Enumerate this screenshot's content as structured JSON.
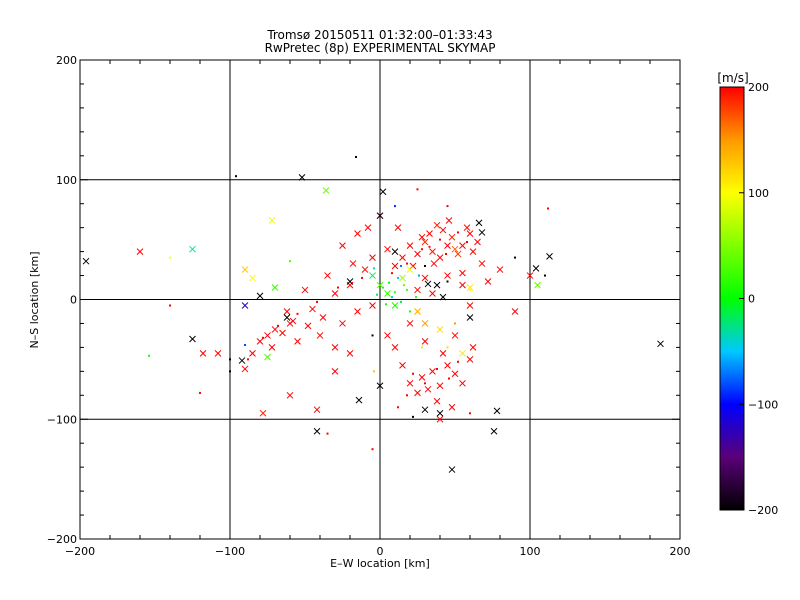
{
  "chart_data": {
    "type": "scatter",
    "title": "Tromsø 20150511 01:32:00–01:33:43",
    "subtitle": "RwPretec (8p) EXPERIMENTAL SKYMAP",
    "xlabel": "E–W location [km]",
    "ylabel": "N–S location [km]",
    "xlim": [
      -200,
      200
    ],
    "ylim": [
      -200,
      200
    ],
    "xticks": [
      -200,
      -100,
      0,
      100,
      200
    ],
    "yticks": [
      -200,
      -100,
      0,
      100,
      200
    ],
    "x_tick_labels": [
      "−200",
      "−100",
      "0",
      "100",
      "200"
    ],
    "y_tick_labels": [
      "−200",
      "−100",
      "0",
      "100",
      "200"
    ],
    "grid": true,
    "grid_lines": [
      -100,
      0,
      100
    ],
    "marker_types": [
      "x",
      "dot"
    ],
    "colorbar": {
      "label": "[m/s]",
      "range": [
        -200,
        200
      ],
      "ticks": [
        200,
        100,
        0,
        -100,
        -200
      ],
      "tick_labels": [
        "200",
        "100",
        "0",
        "−100",
        "−200"
      ],
      "colormap": "rainbow_black_to_red",
      "stops": [
        {
          "v": -200,
          "color": "#000000"
        },
        {
          "v": -150,
          "color": "#5a0078"
        },
        {
          "v": -100,
          "color": "#0000ff"
        },
        {
          "v": -50,
          "color": "#00c8ff"
        },
        {
          "v": 0,
          "color": "#00ff00"
        },
        {
          "v": 100,
          "color": "#ffff00"
        },
        {
          "v": 150,
          "color": "#ff9900"
        },
        {
          "v": 200,
          "color": "#ff0000"
        }
      ]
    },
    "points": [
      {
        "x": 42,
        "y": 58,
        "v": 200,
        "m": "x"
      },
      {
        "x": 35,
        "y": 40,
        "v": 195,
        "m": "x"
      },
      {
        "x": 48,
        "y": 52,
        "v": 190,
        "m": "x"
      },
      {
        "x": 55,
        "y": 45,
        "v": 200,
        "m": "x"
      },
      {
        "x": 30,
        "y": 48,
        "v": 185,
        "m": "x"
      },
      {
        "x": 60,
        "y": 55,
        "v": 200,
        "m": "x"
      },
      {
        "x": 25,
        "y": 38,
        "v": 200,
        "m": "x"
      },
      {
        "x": 38,
        "y": 62,
        "v": 190,
        "m": "x"
      },
      {
        "x": 45,
        "y": 45,
        "v": 200,
        "m": "x"
      },
      {
        "x": 52,
        "y": 38,
        "v": 180,
        "m": "x"
      },
      {
        "x": 28,
        "y": 52,
        "v": 200,
        "m": "x"
      },
      {
        "x": 65,
        "y": 48,
        "v": 200,
        "m": "x"
      },
      {
        "x": 40,
        "y": 35,
        "v": 200,
        "m": "x"
      },
      {
        "x": 58,
        "y": 60,
        "v": 195,
        "m": "x"
      },
      {
        "x": 33,
        "y": 55,
        "v": 200,
        "m": "x"
      },
      {
        "x": 20,
        "y": 45,
        "v": 200,
        "m": "x"
      },
      {
        "x": 46,
        "y": 66,
        "v": 200,
        "m": "x"
      },
      {
        "x": 50,
        "y": 42,
        "v": 170,
        "m": "x"
      },
      {
        "x": 62,
        "y": 40,
        "v": 200,
        "m": "x"
      },
      {
        "x": 15,
        "y": 35,
        "v": 200,
        "m": "x"
      },
      {
        "x": 36,
        "y": 30,
        "v": 200,
        "m": "x"
      },
      {
        "x": 22,
        "y": 28,
        "v": 200,
        "m": "x"
      },
      {
        "x": 10,
        "y": 28,
        "v": 200,
        "m": "x"
      },
      {
        "x": 5,
        "y": 42,
        "v": 200,
        "m": "x"
      },
      {
        "x": -5,
        "y": 35,
        "v": 200,
        "m": "x"
      },
      {
        "x": 12,
        "y": 60,
        "v": 200,
        "m": "x"
      },
      {
        "x": 30,
        "y": 18,
        "v": 200,
        "m": "x"
      },
      {
        "x": 45,
        "y": 20,
        "v": 200,
        "m": "x"
      },
      {
        "x": 55,
        "y": 22,
        "v": 200,
        "m": "x"
      },
      {
        "x": 68,
        "y": 30,
        "v": 200,
        "m": "x"
      },
      {
        "x": 72,
        "y": 15,
        "v": 200,
        "m": "x"
      },
      {
        "x": 80,
        "y": 25,
        "v": 200,
        "m": "x"
      },
      {
        "x": -10,
        "y": 25,
        "v": 200,
        "m": "x"
      },
      {
        "x": -20,
        "y": 12,
        "v": 200,
        "m": "x"
      },
      {
        "x": -30,
        "y": 5,
        "v": 200,
        "m": "x"
      },
      {
        "x": -18,
        "y": 30,
        "v": 200,
        "m": "x"
      },
      {
        "x": -35,
        "y": 20,
        "v": 200,
        "m": "x"
      },
      {
        "x": -50,
        "y": 8,
        "v": 200,
        "m": "x"
      },
      {
        "x": -60,
        "y": -20,
        "v": 200,
        "m": "x"
      },
      {
        "x": -70,
        "y": -25,
        "v": 200,
        "m": "x"
      },
      {
        "x": -75,
        "y": -30,
        "v": 200,
        "m": "x"
      },
      {
        "x": -65,
        "y": -28,
        "v": 200,
        "m": "x"
      },
      {
        "x": -80,
        "y": -35,
        "v": 200,
        "m": "x"
      },
      {
        "x": -55,
        "y": -35,
        "v": 200,
        "m": "x"
      },
      {
        "x": -85,
        "y": -45,
        "v": 200,
        "m": "x"
      },
      {
        "x": -72,
        "y": -40,
        "v": 200,
        "m": "x"
      },
      {
        "x": -48,
        "y": -22,
        "v": 200,
        "m": "x"
      },
      {
        "x": -40,
        "y": -30,
        "v": 200,
        "m": "x"
      },
      {
        "x": -30,
        "y": -40,
        "v": 200,
        "m": "x"
      },
      {
        "x": -20,
        "y": -45,
        "v": 200,
        "m": "x"
      },
      {
        "x": -90,
        "y": -58,
        "v": 200,
        "m": "x"
      },
      {
        "x": -108,
        "y": -45,
        "v": 200,
        "m": "x"
      },
      {
        "x": -62,
        "y": -10,
        "v": 200,
        "m": "x"
      },
      {
        "x": -58,
        "y": -18,
        "v": 200,
        "m": "x"
      },
      {
        "x": -45,
        "y": -8,
        "v": 200,
        "m": "x"
      },
      {
        "x": -38,
        "y": -15,
        "v": 200,
        "m": "x"
      },
      {
        "x": -25,
        "y": -20,
        "v": 200,
        "m": "x"
      },
      {
        "x": -15,
        "y": -10,
        "v": 200,
        "m": "x"
      },
      {
        "x": 20,
        "y": -70,
        "v": 200,
        "m": "x"
      },
      {
        "x": 28,
        "y": -65,
        "v": 200,
        "m": "x"
      },
      {
        "x": 35,
        "y": -60,
        "v": 200,
        "m": "x"
      },
      {
        "x": 40,
        "y": -72,
        "v": 200,
        "m": "x"
      },
      {
        "x": 45,
        "y": -55,
        "v": 200,
        "m": "x"
      },
      {
        "x": 50,
        "y": -62,
        "v": 200,
        "m": "x"
      },
      {
        "x": 25,
        "y": -78,
        "v": 200,
        "m": "x"
      },
      {
        "x": 32,
        "y": -75,
        "v": 200,
        "m": "x"
      },
      {
        "x": 38,
        "y": -85,
        "v": 200,
        "m": "x"
      },
      {
        "x": 55,
        "y": -70,
        "v": 200,
        "m": "x"
      },
      {
        "x": 60,
        "y": -50,
        "v": 200,
        "m": "x"
      },
      {
        "x": 42,
        "y": -45,
        "v": 200,
        "m": "x"
      },
      {
        "x": 15,
        "y": -55,
        "v": 200,
        "m": "x"
      },
      {
        "x": 10,
        "y": -40,
        "v": 200,
        "m": "x"
      },
      {
        "x": 30,
        "y": -35,
        "v": 200,
        "m": "x"
      },
      {
        "x": 48,
        "y": -90,
        "v": 200,
        "m": "x"
      },
      {
        "x": 40,
        "y": -100,
        "v": 200,
        "m": "x"
      },
      {
        "x": 62,
        "y": -40,
        "v": 200,
        "m": "x"
      },
      {
        "x": 50,
        "y": -30,
        "v": 200,
        "m": "x"
      },
      {
        "x": 20,
        "y": -20,
        "v": 200,
        "m": "x"
      },
      {
        "x": -160,
        "y": 40,
        "v": 200,
        "m": "x"
      },
      {
        "x": -118,
        "y": -45,
        "v": 200,
        "m": "x"
      },
      {
        "x": -60,
        "y": -80,
        "v": 200,
        "m": "x"
      },
      {
        "x": -78,
        "y": -95,
        "v": 190,
        "m": "x"
      },
      {
        "x": -42,
        "y": -92,
        "v": 200,
        "m": "x"
      },
      {
        "x": -30,
        "y": -60,
        "v": 200,
        "m": "x"
      },
      {
        "x": 5,
        "y": -30,
        "v": 200,
        "m": "x"
      },
      {
        "x": -5,
        "y": -5,
        "v": 200,
        "m": "x"
      },
      {
        "x": 100,
        "y": 20,
        "v": 200,
        "m": "x"
      },
      {
        "x": 90,
        "y": -10,
        "v": 200,
        "m": "x"
      },
      {
        "x": -8,
        "y": 60,
        "v": 200,
        "m": "x"
      },
      {
        "x": 0,
        "y": 70,
        "v": 200,
        "m": "x"
      },
      {
        "x": -25,
        "y": 45,
        "v": 200,
        "m": "x"
      },
      {
        "x": -15,
        "y": 55,
        "v": 200,
        "m": "x"
      },
      {
        "x": 35,
        "y": 5,
        "v": 200,
        "m": "x"
      },
      {
        "x": 25,
        "y": 8,
        "v": 200,
        "m": "x"
      },
      {
        "x": 60,
        "y": -5,
        "v": 200,
        "m": "x"
      },
      {
        "x": 55,
        "y": 12,
        "v": 200,
        "m": "x"
      },
      {
        "x": -36,
        "y": 91,
        "v": 40,
        "m": "x"
      },
      {
        "x": -72,
        "y": 66,
        "v": 95,
        "m": "x"
      },
      {
        "x": -125,
        "y": 42,
        "v": -30,
        "m": "x"
      },
      {
        "x": -90,
        "y": 25,
        "v": 130,
        "m": "x"
      },
      {
        "x": -85,
        "y": 18,
        "v": 100,
        "m": "x"
      },
      {
        "x": -70,
        "y": 10,
        "v": 20,
        "m": "x"
      },
      {
        "x": -75,
        "y": -48,
        "v": 30,
        "m": "x"
      },
      {
        "x": -90,
        "y": -5,
        "v": -120,
        "m": "x"
      },
      {
        "x": 105,
        "y": 12,
        "v": 40,
        "m": "x"
      },
      {
        "x": 0,
        "y": 12,
        "v": 30,
        "m": "x"
      },
      {
        "x": 5,
        "y": 5,
        "v": 20,
        "m": "x"
      },
      {
        "x": 10,
        "y": -5,
        "v": 10,
        "m": "x"
      },
      {
        "x": 15,
        "y": 18,
        "v": 60,
        "m": "x"
      },
      {
        "x": -5,
        "y": 20,
        "v": -20,
        "m": "x"
      },
      {
        "x": 20,
        "y": 25,
        "v": 90,
        "m": "x"
      },
      {
        "x": 40,
        "y": -25,
        "v": 120,
        "m": "x"
      },
      {
        "x": 55,
        "y": -45,
        "v": 110,
        "m": "x"
      },
      {
        "x": 30,
        "y": -20,
        "v": 150,
        "m": "x"
      },
      {
        "x": 60,
        "y": 10,
        "v": 110,
        "m": "x"
      },
      {
        "x": 25,
        "y": -10,
        "v": 140,
        "m": "x"
      },
      {
        "x": -196,
        "y": 32,
        "v": -200,
        "m": "x"
      },
      {
        "x": -125,
        "y": -33,
        "v": -200,
        "m": "x"
      },
      {
        "x": -52,
        "y": 102,
        "v": -200,
        "m": "x"
      },
      {
        "x": 2,
        "y": 90,
        "v": -200,
        "m": "x"
      },
      {
        "x": 0,
        "y": 70,
        "v": -190,
        "m": "x"
      },
      {
        "x": 66,
        "y": 64,
        "v": -200,
        "m": "x"
      },
      {
        "x": 68,
        "y": 56,
        "v": -200,
        "m": "x"
      },
      {
        "x": 113,
        "y": 36,
        "v": -200,
        "m": "x"
      },
      {
        "x": 104,
        "y": 26,
        "v": -200,
        "m": "x"
      },
      {
        "x": 187,
        "y": -37,
        "v": -200,
        "m": "x"
      },
      {
        "x": -42,
        "y": -110,
        "v": -200,
        "m": "x"
      },
      {
        "x": 48,
        "y": -142,
        "v": -200,
        "m": "x"
      },
      {
        "x": 76,
        "y": -110,
        "v": -200,
        "m": "x"
      },
      {
        "x": 78,
        "y": -93,
        "v": -200,
        "m": "x"
      },
      {
        "x": 0,
        "y": -72,
        "v": -200,
        "m": "x"
      },
      {
        "x": -14,
        "y": -84,
        "v": -200,
        "m": "x"
      },
      {
        "x": 38,
        "y": 12,
        "v": -200,
        "m": "x"
      },
      {
        "x": 42,
        "y": 2,
        "v": -200,
        "m": "x"
      },
      {
        "x": 32,
        "y": 13,
        "v": -200,
        "m": "x"
      },
      {
        "x": -92,
        "y": -51,
        "v": -200,
        "m": "x"
      },
      {
        "x": 40,
        "y": -95,
        "v": -200,
        "m": "x"
      },
      {
        "x": 30,
        "y": -92,
        "v": -200,
        "m": "x"
      },
      {
        "x": -62,
        "y": -15,
        "v": -200,
        "m": "x"
      },
      {
        "x": -20,
        "y": 15,
        "v": -200,
        "m": "x"
      },
      {
        "x": 10,
        "y": 40,
        "v": -200,
        "m": "x"
      },
      {
        "x": 60,
        "y": -15,
        "v": -200,
        "m": "x"
      },
      {
        "x": -80,
        "y": 3,
        "v": -200,
        "m": "x"
      },
      {
        "x": 40,
        "y": 50,
        "v": 200,
        "m": "dot"
      },
      {
        "x": 33,
        "y": 44,
        "v": 200,
        "m": "dot"
      },
      {
        "x": 52,
        "y": 56,
        "v": 200,
        "m": "dot"
      },
      {
        "x": 44,
        "y": 38,
        "v": 200,
        "m": "dot"
      },
      {
        "x": 28,
        "y": 42,
        "v": 200,
        "m": "dot"
      },
      {
        "x": 58,
        "y": 48,
        "v": 200,
        "m": "dot"
      },
      {
        "x": 18,
        "y": 30,
        "v": 200,
        "m": "dot"
      },
      {
        "x": 8,
        "y": 22,
        "v": 200,
        "m": "dot"
      },
      {
        "x": -12,
        "y": 18,
        "v": 200,
        "m": "dot"
      },
      {
        "x": -28,
        "y": 10,
        "v": 200,
        "m": "dot"
      },
      {
        "x": -42,
        "y": -2,
        "v": 200,
        "m": "dot"
      },
      {
        "x": -55,
        "y": -12,
        "v": 200,
        "m": "dot"
      },
      {
        "x": -68,
        "y": -22,
        "v": 200,
        "m": "dot"
      },
      {
        "x": -78,
        "y": -32,
        "v": 200,
        "m": "dot"
      },
      {
        "x": -88,
        "y": -50,
        "v": 200,
        "m": "dot"
      },
      {
        "x": 22,
        "y": -62,
        "v": 200,
        "m": "dot"
      },
      {
        "x": 30,
        "y": -70,
        "v": 200,
        "m": "dot"
      },
      {
        "x": 38,
        "y": -58,
        "v": 200,
        "m": "dot"
      },
      {
        "x": 46,
        "y": -66,
        "v": 200,
        "m": "dot"
      },
      {
        "x": 52,
        "y": -52,
        "v": 200,
        "m": "dot"
      },
      {
        "x": 18,
        "y": -80,
        "v": 200,
        "m": "dot"
      },
      {
        "x": 12,
        "y": -90,
        "v": 200,
        "m": "dot"
      },
      {
        "x": 112,
        "y": 76,
        "v": 200,
        "m": "dot"
      },
      {
        "x": -120,
        "y": -78,
        "v": 200,
        "m": "dot"
      },
      {
        "x": -140,
        "y": -5,
        "v": 200,
        "m": "dot"
      },
      {
        "x": -5,
        "y": -125,
        "v": 200,
        "m": "dot"
      },
      {
        "x": 45,
        "y": 78,
        "v": 200,
        "m": "dot"
      },
      {
        "x": 25,
        "y": 92,
        "v": 200,
        "m": "dot"
      },
      {
        "x": -35,
        "y": -112,
        "v": 200,
        "m": "dot"
      },
      {
        "x": 60,
        "y": -95,
        "v": 200,
        "m": "dot"
      },
      {
        "x": 2,
        "y": 10,
        "v": 10,
        "m": "dot"
      },
      {
        "x": 6,
        "y": 14,
        "v": 0,
        "m": "dot"
      },
      {
        "x": 10,
        "y": 6,
        "v": 20,
        "m": "dot"
      },
      {
        "x": 14,
        "y": -2,
        "v": -10,
        "m": "dot"
      },
      {
        "x": 18,
        "y": 8,
        "v": 30,
        "m": "dot"
      },
      {
        "x": 4,
        "y": -4,
        "v": 5,
        "m": "dot"
      },
      {
        "x": 8,
        "y": 2,
        "v": -40,
        "m": "dot"
      },
      {
        "x": -2,
        "y": 4,
        "v": -20,
        "m": "dot"
      },
      {
        "x": 12,
        "y": 18,
        "v": -50,
        "m": "dot"
      },
      {
        "x": 20,
        "y": -10,
        "v": 10,
        "m": "dot"
      },
      {
        "x": 16,
        "y": 12,
        "v": 40,
        "m": "dot"
      },
      {
        "x": 24,
        "y": 2,
        "v": 15,
        "m": "dot"
      },
      {
        "x": -4,
        "y": 26,
        "v": -30,
        "m": "dot"
      },
      {
        "x": 14,
        "y": 28,
        "v": -70,
        "m": "dot"
      },
      {
        "x": 26,
        "y": 20,
        "v": -60,
        "m": "dot"
      },
      {
        "x": -154,
        "y": -47,
        "v": 10,
        "m": "dot"
      },
      {
        "x": -140,
        "y": 35,
        "v": 100,
        "m": "dot"
      },
      {
        "x": -90,
        "y": -38,
        "v": -80,
        "m": "dot"
      },
      {
        "x": -60,
        "y": 32,
        "v": 30,
        "m": "dot"
      },
      {
        "x": 28,
        "y": -40,
        "v": 80,
        "m": "dot"
      },
      {
        "x": 45,
        "y": -40,
        "v": 120,
        "m": "dot"
      },
      {
        "x": 50,
        "y": -20,
        "v": 150,
        "m": "dot"
      },
      {
        "x": 10,
        "y": 78,
        "v": -90,
        "m": "dot"
      },
      {
        "x": 60,
        "y": 8,
        "v": 100,
        "m": "dot"
      },
      {
        "x": -4,
        "y": -60,
        "v": 130,
        "m": "dot"
      },
      {
        "x": -16,
        "y": 119,
        "v": -200,
        "m": "dot"
      },
      {
        "x": -96,
        "y": 103,
        "v": -200,
        "m": "dot"
      },
      {
        "x": -100,
        "y": -50,
        "v": -200,
        "m": "dot"
      },
      {
        "x": -100,
        "y": -60,
        "v": -200,
        "m": "dot"
      },
      {
        "x": 90,
        "y": 35,
        "v": -200,
        "m": "dot"
      },
      {
        "x": 110,
        "y": 20,
        "v": -200,
        "m": "dot"
      },
      {
        "x": 45,
        "y": 15,
        "v": -200,
        "m": "dot"
      },
      {
        "x": 30,
        "y": 28,
        "v": -200,
        "m": "dot"
      },
      {
        "x": -5,
        "y": -30,
        "v": -200,
        "m": "dot"
      },
      {
        "x": 22,
        "y": -98,
        "v": -200,
        "m": "dot"
      }
    ]
  }
}
